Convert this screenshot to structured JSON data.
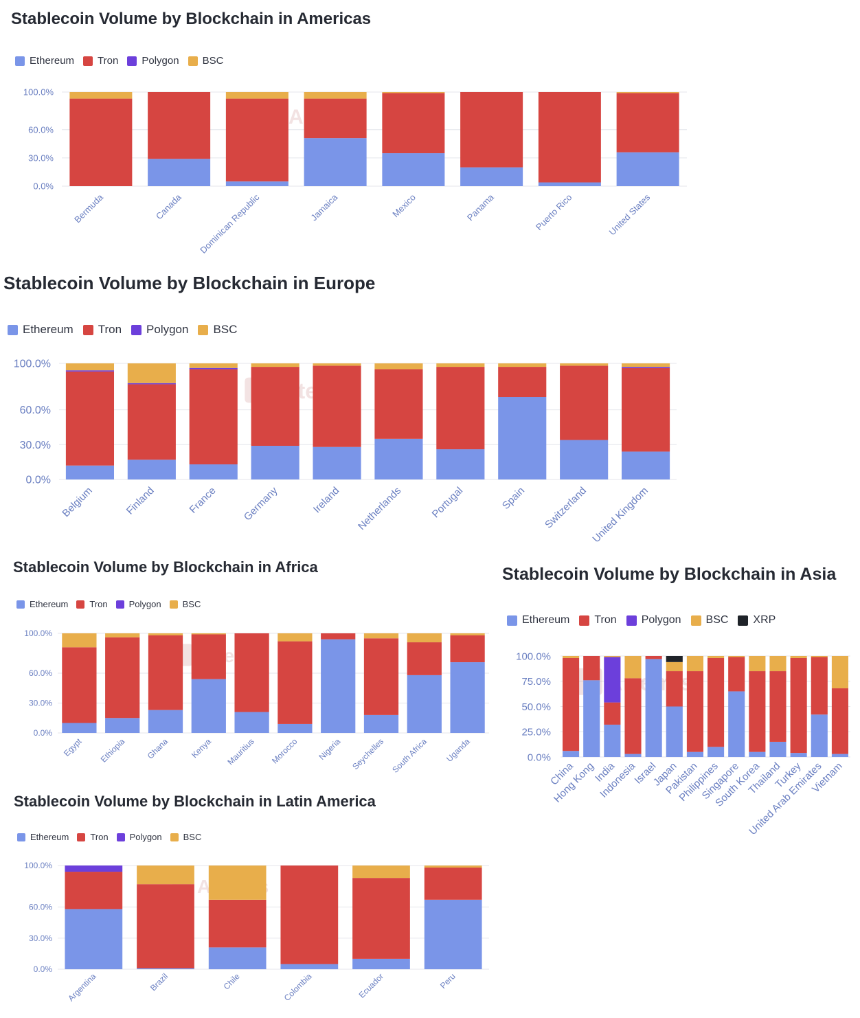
{
  "colors": {
    "Ethereum": "#7a95e8",
    "Tron": "#d64541",
    "Polygon": "#6c3fdb",
    "BSC": "#e8ae4b",
    "XRP": "#1f2329",
    "grid": "#e4e6eb",
    "tick_text": "#6a7fc1"
  },
  "watermark_text": "Artemis",
  "chart_data": [
    {
      "id": "americas",
      "type": "bar",
      "stacked": true,
      "title": "Stablecoin Volume by Blockchain in Americas",
      "legend": [
        "Ethereum",
        "Tron",
        "Polygon",
        "BSC"
      ],
      "yticks": [
        0,
        30,
        60,
        100
      ],
      "ytick_labels": [
        "0.0%",
        "30.0%",
        "60.0%",
        "100.0%"
      ],
      "ylim": [
        0,
        100
      ],
      "categories": [
        "Bermuda",
        "Canada",
        "Dominican Republic",
        "Jamaica",
        "Mexico",
        "Panama",
        "Puerto Rico",
        "United States"
      ],
      "series": [
        {
          "name": "Ethereum",
          "values": [
            0,
            29,
            5,
            51,
            35,
            20,
            4,
            36
          ]
        },
        {
          "name": "Tron",
          "values": [
            93,
            71,
            88,
            42,
            64,
            80,
            96,
            63
          ]
        },
        {
          "name": "Polygon",
          "values": [
            0,
            0,
            0,
            0,
            0,
            0,
            0,
            0
          ]
        },
        {
          "name": "BSC",
          "values": [
            7,
            0,
            7,
            7,
            1,
            0,
            0,
            1
          ]
        }
      ]
    },
    {
      "id": "europe",
      "type": "bar",
      "stacked": true,
      "title": "Stablecoin Volume by Blockchain in Europe",
      "legend": [
        "Ethereum",
        "Tron",
        "Polygon",
        "BSC"
      ],
      "yticks": [
        0,
        30,
        60,
        100
      ],
      "ytick_labels": [
        "0.0%",
        "30.0%",
        "60.0%",
        "100.0%"
      ],
      "ylim": [
        0,
        100
      ],
      "categories": [
        "Belgium",
        "Finland",
        "France",
        "Germany",
        "Ireland",
        "Netherlands",
        "Portugal",
        "Spain",
        "Switzerland",
        "United Kingdom"
      ],
      "series": [
        {
          "name": "Ethereum",
          "values": [
            12,
            17,
            13,
            29,
            28,
            35,
            26,
            71,
            34,
            24
          ]
        },
        {
          "name": "Tron",
          "values": [
            81,
            65,
            82,
            68,
            70,
            60,
            71,
            26,
            64,
            72
          ]
        },
        {
          "name": "Polygon",
          "values": [
            1,
            1,
            1,
            0,
            0,
            0,
            0,
            0,
            0,
            1
          ]
        },
        {
          "name": "BSC",
          "values": [
            6,
            17,
            4,
            3,
            2,
            5,
            3,
            3,
            2,
            3
          ]
        }
      ]
    },
    {
      "id": "africa",
      "type": "bar",
      "stacked": true,
      "title": "Stablecoin Volume by Blockchain in Africa",
      "legend": [
        "Ethereum",
        "Tron",
        "Polygon",
        "BSC"
      ],
      "yticks": [
        0,
        30,
        60,
        100
      ],
      "ytick_labels": [
        "0.0%",
        "30.0%",
        "60.0%",
        "100.0%"
      ],
      "ylim": [
        0,
        100
      ],
      "categories": [
        "Egypt",
        "Ethiopia",
        "Ghana",
        "Kenya",
        "Mauritius",
        "Morocco",
        "Nigeria",
        "Seychelles",
        "South Africa",
        "Uganda"
      ],
      "series": [
        {
          "name": "Ethereum",
          "values": [
            10,
            15,
            23,
            54,
            21,
            9,
            94,
            18,
            58,
            71
          ]
        },
        {
          "name": "Tron",
          "values": [
            76,
            81,
            75,
            45,
            79,
            83,
            6,
            77,
            33,
            27
          ]
        },
        {
          "name": "Polygon",
          "values": [
            0,
            0,
            0,
            0,
            0,
            0,
            0,
            0,
            0,
            0
          ]
        },
        {
          "name": "BSC",
          "values": [
            14,
            4,
            2,
            1,
            0,
            8,
            0,
            5,
            9,
            2
          ]
        }
      ]
    },
    {
      "id": "latam",
      "type": "bar",
      "stacked": true,
      "title": "Stablecoin Volume by Blockchain in Latin America",
      "legend": [
        "Ethereum",
        "Tron",
        "Polygon",
        "BSC"
      ],
      "yticks": [
        0,
        30,
        60,
        100
      ],
      "ytick_labels": [
        "0.0%",
        "30.0%",
        "60.0%",
        "100.0%"
      ],
      "ylim": [
        0,
        100
      ],
      "categories": [
        "Argentina",
        "Brazil",
        "Chile",
        "Colombia",
        "Ecuador",
        "Peru"
      ],
      "series": [
        {
          "name": "Ethereum",
          "values": [
            58,
            1,
            21,
            5,
            10,
            67
          ]
        },
        {
          "name": "Tron",
          "values": [
            36,
            81,
            46,
            95,
            78,
            31
          ]
        },
        {
          "name": "Polygon",
          "values": [
            6,
            0,
            0,
            0,
            0,
            0
          ]
        },
        {
          "name": "BSC",
          "values": [
            0,
            18,
            33,
            0,
            12,
            2
          ]
        }
      ]
    },
    {
      "id": "asia",
      "type": "bar",
      "stacked": true,
      "title": "Stablecoin Volume by Blockchain in Asia",
      "legend": [
        "Ethereum",
        "Tron",
        "Polygon",
        "BSC",
        "XRP"
      ],
      "yticks": [
        0,
        25,
        50,
        75,
        100
      ],
      "ytick_labels": [
        "0.0%",
        "25.0%",
        "50.0%",
        "75.0%",
        "100.0%"
      ],
      "ylim": [
        0,
        100
      ],
      "categories": [
        "China",
        "Hong Kong",
        "India",
        "Indonesia",
        "Israel",
        "Japan",
        "Pakistan",
        "Philippines",
        "Singapore",
        "South Korea",
        "Thailand",
        "Turkey",
        "United Arab Emirates",
        "Vietnam"
      ],
      "series": [
        {
          "name": "Ethereum",
          "values": [
            6,
            76,
            32,
            3,
            97,
            50,
            5,
            10,
            65,
            5,
            15,
            4,
            42,
            3
          ]
        },
        {
          "name": "Tron",
          "values": [
            92,
            24,
            22,
            75,
            3,
            35,
            80,
            88,
            34,
            80,
            70,
            94,
            57,
            65
          ]
        },
        {
          "name": "Polygon",
          "values": [
            0,
            0,
            45,
            0,
            0,
            0,
            0,
            0,
            0,
            0,
            0,
            0,
            0,
            0
          ]
        },
        {
          "name": "BSC",
          "values": [
            2,
            0,
            1,
            22,
            0,
            9,
            15,
            2,
            1,
            15,
            15,
            2,
            1,
            32
          ]
        },
        {
          "name": "XRP",
          "values": [
            0,
            0,
            0,
            0,
            0,
            6,
            0,
            0,
            0,
            0,
            0,
            0,
            0,
            0
          ]
        }
      ]
    }
  ]
}
